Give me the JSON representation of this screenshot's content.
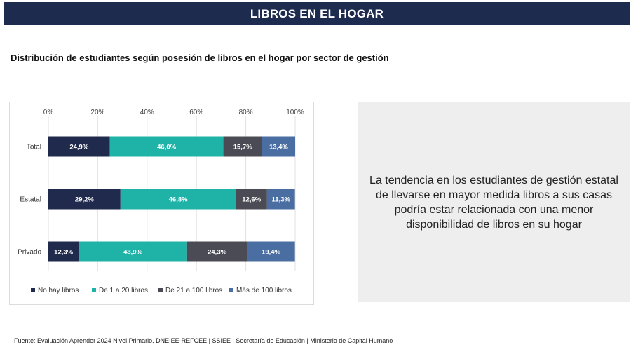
{
  "header": {
    "title": "LIBROS EN EL HOGAR"
  },
  "subtitle": "Distribución de estudiantes según posesión de libros en el hogar por sector de gestión",
  "note": "La tendencia en los estudiantes de gestión estatal de llevarse en mayor medida libros a sus casas podría estar relacionada con una menor disponibilidad de libros en su hogar",
  "source": "Fuente: Evaluación Aprender 2024 Nivel Primario. DNEIEE-REFCEE | SSIEE | Secretaría de Educación | Ministerio de Capital Humano",
  "chart_data": {
    "type": "bar",
    "orientation": "horizontal",
    "stacked": true,
    "categories": [
      "Total",
      "Estatal",
      "Privado"
    ],
    "x_ticks": [
      "0%",
      "20%",
      "40%",
      "60%",
      "80%",
      "100%"
    ],
    "xlim": [
      0,
      100
    ],
    "grid": true,
    "legend_position": "bottom",
    "series": [
      {
        "name": "No hay libros",
        "color": "#1f2a4d",
        "values": [
          24.9,
          29.2,
          12.3
        ],
        "labels": [
          "24,9%",
          "29,2%",
          "12,3%"
        ]
      },
      {
        "name": "De 1 a 20 libros",
        "color": "#1fb3a8",
        "values": [
          46.0,
          46.8,
          43.9
        ],
        "labels": [
          "46,0%",
          "46,8%",
          "43,9%"
        ]
      },
      {
        "name": "De 21 a 100 libros",
        "color": "#4b4b55",
        "values": [
          15.7,
          12.6,
          24.3
        ],
        "labels": [
          "15,7%",
          "12,6%",
          "24,3%"
        ]
      },
      {
        "name": "Más de 100 libros",
        "color": "#4a6da2",
        "values": [
          13.4,
          11.3,
          19.4
        ],
        "labels": [
          "13,4%",
          "11,3%",
          "19,4%"
        ]
      }
    ]
  }
}
